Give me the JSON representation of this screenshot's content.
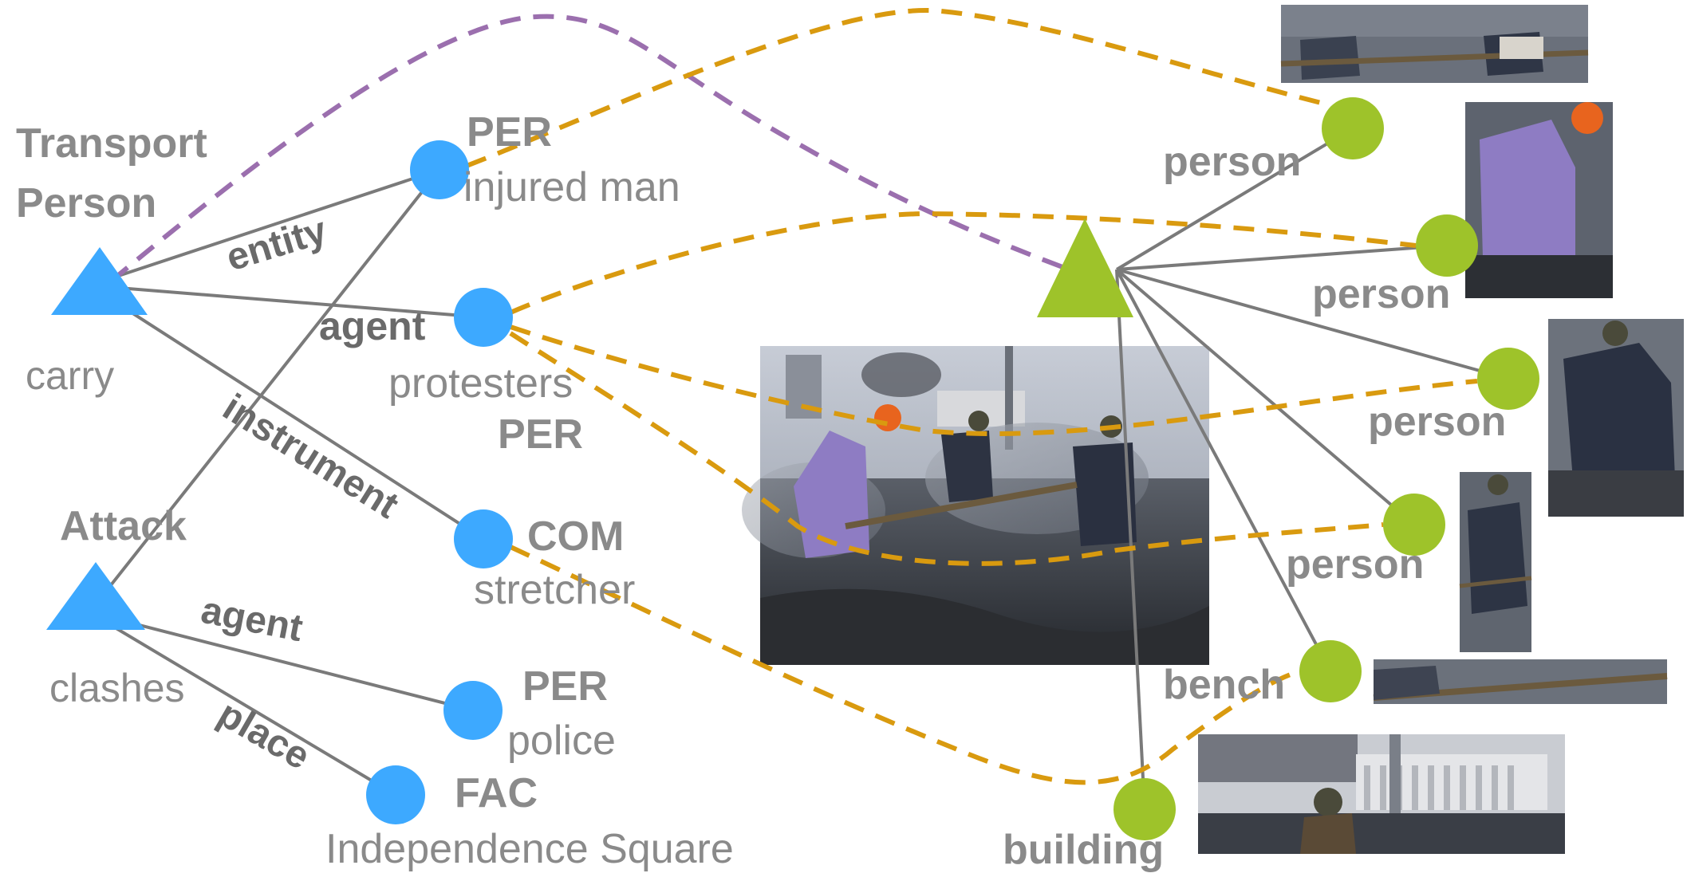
{
  "colors": {
    "text_event_entity": "#8a8a8a",
    "role": "#6a6a6a",
    "text_node": "#3da9ff",
    "image_node": "#9ec32a",
    "text_edge": "#7a7a7a",
    "image_edge": "#7a7a7a",
    "event_alignment": "#9b6fae",
    "entity_alignment": "#d99a0f"
  },
  "text_graph": {
    "events": [
      {
        "id": "transport",
        "type": "Transport\nPerson",
        "trigger": "carry"
      },
      {
        "id": "attack",
        "type": "Attack",
        "trigger": "clashes"
      }
    ],
    "entities": [
      {
        "id": "injured",
        "type": "PER",
        "mention": "injured man"
      },
      {
        "id": "protesters",
        "type": "PER",
        "mention": "protesters"
      },
      {
        "id": "stretcher",
        "type": "COM",
        "mention": "stretcher"
      },
      {
        "id": "police",
        "type": "PER",
        "mention": "police"
      },
      {
        "id": "square",
        "type": "FAC",
        "mention": "Independence Square"
      }
    ],
    "roles": [
      {
        "from": "transport",
        "to": "injured",
        "label": "entity"
      },
      {
        "from": "transport",
        "to": "protesters",
        "label": "agent"
      },
      {
        "from": "transport",
        "to": "stretcher",
        "label": "instrument"
      },
      {
        "from": "attack",
        "to": "injured",
        "label": ""
      },
      {
        "from": "attack",
        "to": "police",
        "label": "agent"
      },
      {
        "from": "attack",
        "to": "square",
        "label": "place"
      }
    ]
  },
  "image_graph": {
    "objects": [
      {
        "id": "obj1",
        "label": "person"
      },
      {
        "id": "obj2",
        "label": "person"
      },
      {
        "id": "obj3",
        "label": "person"
      },
      {
        "id": "obj4",
        "label": "person"
      },
      {
        "id": "obj5",
        "label": "bench"
      },
      {
        "id": "obj6",
        "label": "building"
      }
    ]
  },
  "alignments": [
    {
      "from": "transport",
      "to": "img_event",
      "kind": "event"
    },
    {
      "from": "injured",
      "to": "obj1",
      "kind": "entity"
    },
    {
      "from": "protesters",
      "to": "obj2",
      "kind": "entity"
    },
    {
      "from": "protesters",
      "to": "obj3",
      "kind": "entity"
    },
    {
      "from": "protesters",
      "to": "obj4",
      "kind": "entity"
    },
    {
      "from": "stretcher",
      "to": "obj5",
      "kind": "entity"
    }
  ]
}
